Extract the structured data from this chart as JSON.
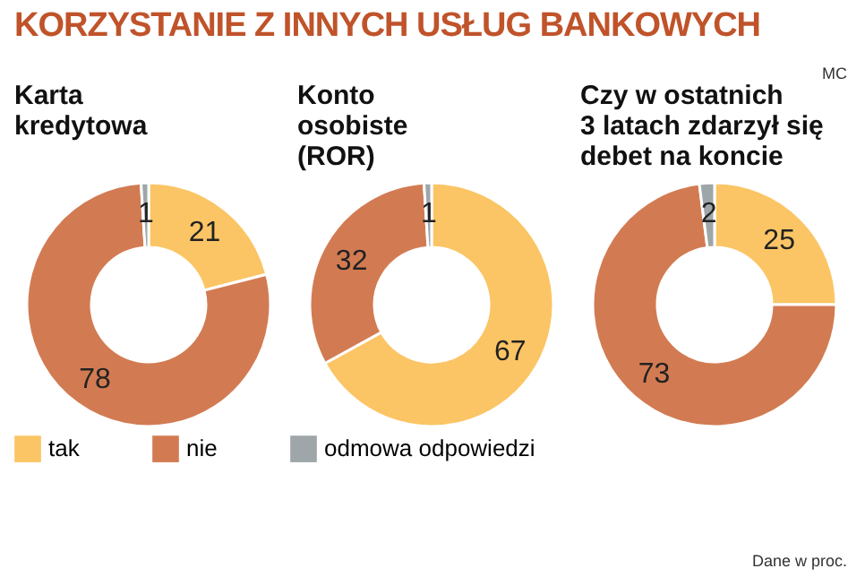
{
  "chart_data": [
    {
      "type": "donut",
      "title": "KORZYSTANIE Z INNYCH USŁUG BANKOWYCH",
      "subtitle": "Karta\nkredytowa",
      "annotations": [
        "MC",
        "Dane w proc."
      ],
      "categories": [
        "tak",
        "nie",
        "odmowa odpowiedzi"
      ],
      "values": [
        21,
        78,
        1
      ],
      "colors": [
        "#fbc565",
        "#d27b52",
        "#9ea6a9"
      ],
      "data_labels": true,
      "legend": "bottom"
    },
    {
      "type": "donut",
      "subtitle": "Konto\nosobiste\n(ROR)",
      "categories": [
        null,
        null,
        null
      ],
      "values": [
        67,
        32,
        1
      ],
      "colors": [
        "#fbc565",
        "#d27b52",
        "#9ea6a9"
      ],
      "data_labels": true
    },
    {
      "type": "donut",
      "subtitle": "Czy w ostatnich\n3 latach zdarzył się\ndebet na koncie",
      "categories": [
        null,
        null,
        null
      ],
      "values": [
        25,
        73,
        2
      ],
      "colors": [
        "#fbc565",
        "#d27b52",
        "#9ea6a9"
      ],
      "data_labels": true
    }
  ]
}
